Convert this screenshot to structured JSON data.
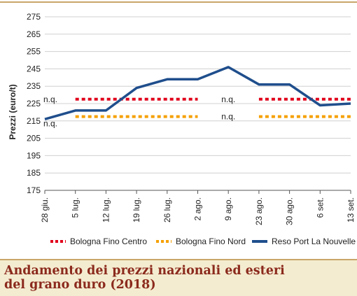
{
  "caption": {
    "line1": "Andamento dei prezzi nazionali ed esteri",
    "line2": "del grano duro (2018)"
  },
  "chart_data": {
    "type": "line",
    "ylabel": "Prezzi (euro/t)",
    "xlabel": "",
    "categories": [
      "28 giu.",
      "5 lug.",
      "12 lug.",
      "19 lug.",
      "26 lug.",
      "2 ago.",
      "9 ago.",
      "23 ago.",
      "30 ago.",
      "6 set.",
      "13 set."
    ],
    "ylim": [
      175,
      275
    ],
    "yticks": [
      175,
      185,
      195,
      205,
      215,
      225,
      235,
      245,
      255,
      265,
      275
    ],
    "grid": "horizontal",
    "legend_position": "bottom",
    "missing_label": "n.q.",
    "series": [
      {
        "name": "Bologna Fino Centro",
        "style": "dotted",
        "color": "#e0001b",
        "values": [
          null,
          227.5,
          227.5,
          227.5,
          227.5,
          227.5,
          null,
          227.5,
          227.5,
          227.5,
          227.5
        ]
      },
      {
        "name": "Bologna Fino Nord",
        "style": "dotted",
        "color": "#f5a000",
        "values": [
          null,
          217.5,
          217.5,
          217.5,
          217.5,
          217.5,
          null,
          217.5,
          217.5,
          217.5,
          217.5
        ]
      },
      {
        "name": "Reso Port La Nouvelle",
        "style": "solid",
        "color": "#1f4e8c",
        "values": [
          216,
          221,
          221,
          234,
          239,
          239,
          246,
          236,
          236,
          224,
          225
        ]
      }
    ]
  }
}
